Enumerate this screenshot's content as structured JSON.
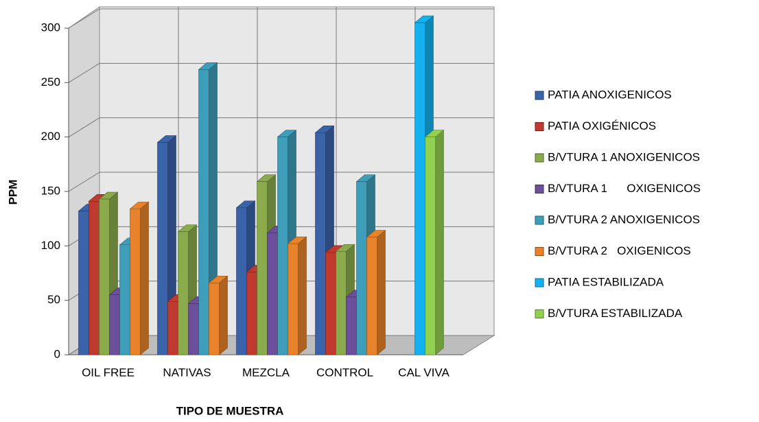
{
  "chart_data": {
    "type": "bar3d",
    "x_label": "TIPO DE MUESTRA",
    "y_label": "PPM",
    "categories": [
      "OIL FREE",
      "NATIVAS",
      "MEZCLA",
      "CONTROL",
      "CAL VIVA"
    ],
    "series": [
      {
        "name": "PATIA ANOXIGENICOS",
        "color": "#3b63a9",
        "values": [
          132,
          195,
          135,
          204,
          null
        ]
      },
      {
        "name": "PATIA OXIGÉNICOS",
        "color": "#c0392f",
        "values": [
          141,
          49,
          76,
          94,
          null
        ]
      },
      {
        "name": "B/VTURA 1 ANOXIGENICOS",
        "color": "#8aaa4c",
        "values": [
          143,
          113,
          159,
          95,
          null
        ]
      },
      {
        "name": "B/VTURA 1      OXIGENICOS",
        "color": "#6c4f9b",
        "values": [
          55,
          47,
          112,
          53,
          null
        ]
      },
      {
        "name": "B/VTURA 2 ANOXIGENICOS",
        "color": "#3e9db9",
        "values": [
          101,
          262,
          200,
          159,
          null
        ]
      },
      {
        "name": "B/VTURA 2   OXIGENICOS",
        "color": "#e8832b",
        "values": [
          134,
          66,
          102,
          108,
          null
        ]
      },
      {
        "name": "PATIA ESTABILIZADA",
        "color": "#14b1f0",
        "values": [
          null,
          null,
          null,
          null,
          305
        ]
      },
      {
        "name": "B/VTURA ESTABILIZADA",
        "color": "#92d050",
        "values": [
          null,
          null,
          null,
          null,
          200
        ]
      }
    ],
    "ylim": [
      0,
      300
    ],
    "yticks": [
      0,
      50,
      100,
      150,
      200,
      250,
      300
    ],
    "grid": true,
    "legend": "right"
  }
}
